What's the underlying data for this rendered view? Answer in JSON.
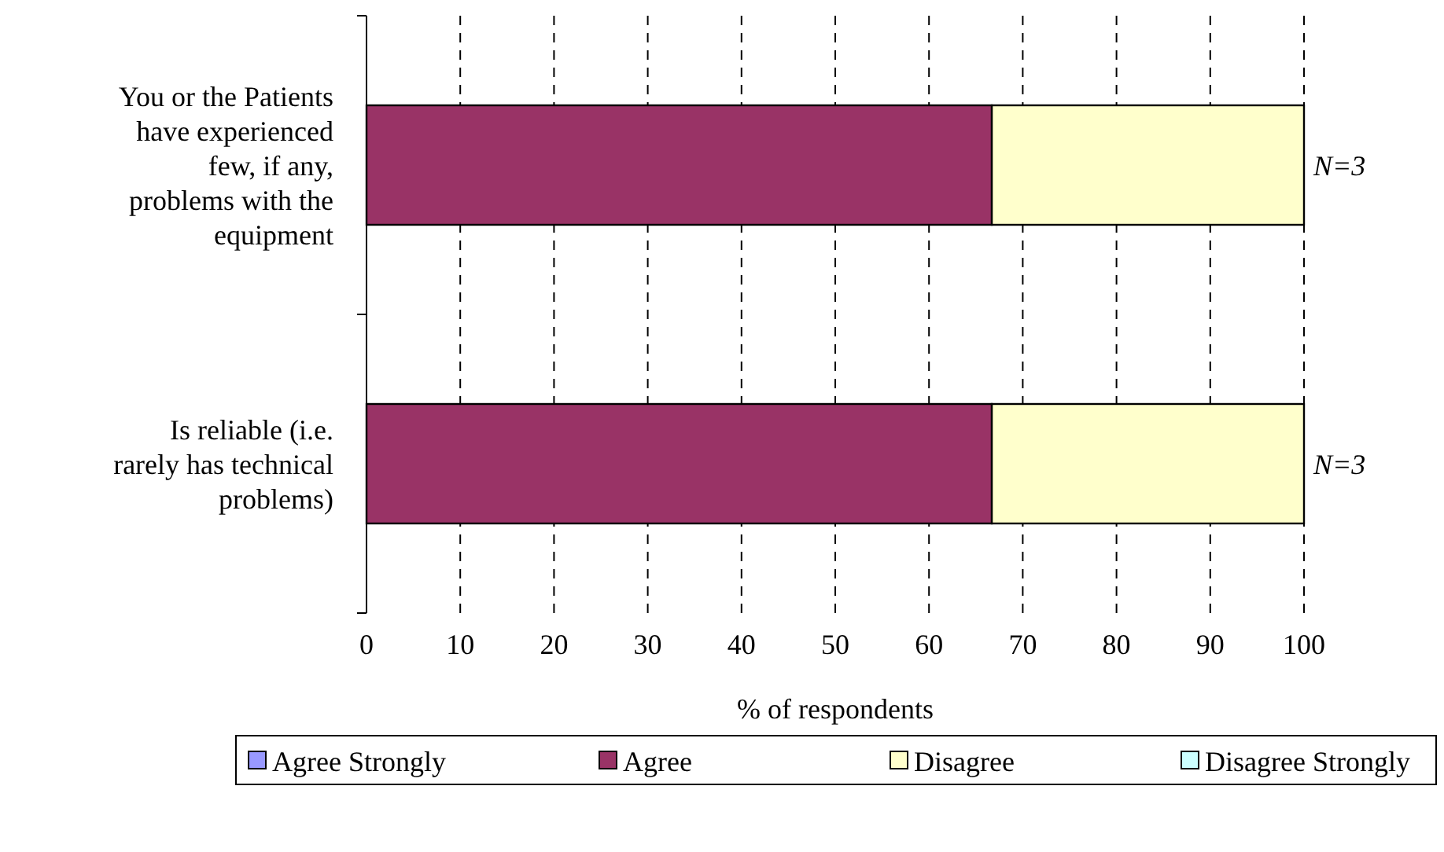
{
  "chart_data": {
    "type": "bar",
    "orientation": "horizontal",
    "stacked": true,
    "categories": [
      "You or the Patients have experienced few, if any, problems with the equipment",
      "Is reliable (i.e. rarely has technical problems)"
    ],
    "series": [
      {
        "name": "Agree Strongly",
        "color": "#9999ff",
        "values": [
          0,
          0
        ]
      },
      {
        "name": "Agree",
        "color": "#993366",
        "values": [
          66.7,
          66.7
        ]
      },
      {
        "name": "Disagree",
        "color": "#ffffcc",
        "values": [
          33.3,
          33.3
        ]
      },
      {
        "name": "Disagree Strongly",
        "color": "#ccffff",
        "values": [
          0,
          0
        ]
      }
    ],
    "xlim": [
      0,
      100
    ],
    "xticks": [
      0,
      10,
      20,
      30,
      40,
      50,
      60,
      70,
      80,
      90,
      100
    ],
    "xlabel": "% of respondents",
    "grid": "x",
    "legend": "bottom",
    "annotations": [
      {
        "text": "N=3",
        "x": 100,
        "y": "You or the Patients have experienced few, if any, problems with the equipment"
      },
      {
        "text": "N=3",
        "x": 100,
        "y": "Is reliable (i.e. rarely has technical problems)"
      }
    ]
  }
}
